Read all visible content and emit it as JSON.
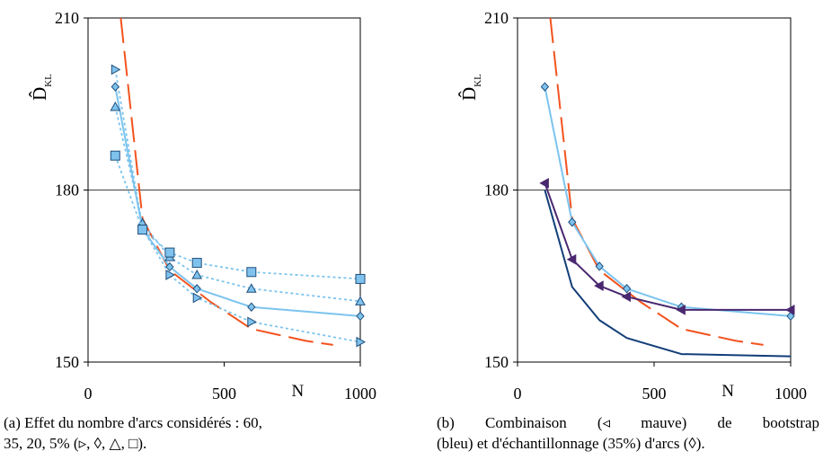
{
  "chart_data": [
    {
      "panel": "a",
      "type": "line",
      "ylabel": "D̂",
      "ylabel_sub": "KL",
      "xlabel": "N",
      "xlim": [
        0,
        1000
      ],
      "ylim": [
        150,
        210
      ],
      "xticks": [
        "0",
        "500",
        "1000"
      ],
      "yticks": [
        "150",
        "180",
        "210"
      ],
      "reference_line": 180,
      "caption": "(a) Effet du nombre d'arcs considérés : 60, 35, 20, 5% (▹, ◊, △, □).",
      "series": [
        {
          "marker": "none",
          "style": "dashed",
          "color": "#F2531F",
          "x": [
            120,
            200,
            300,
            450,
            600,
            800,
            900
          ],
          "y": [
            210,
            175,
            166,
            160.5,
            155.8,
            153.7,
            153
          ]
        },
        {
          "marker": "triangle-right",
          "style": "dotted",
          "color": "#7CC4EE",
          "x": [
            100,
            200,
            300,
            400,
            600,
            1000
          ],
          "y": [
            201,
            173.3,
            165.2,
            161.2,
            157,
            153.5
          ]
        },
        {
          "marker": "diamond",
          "style": "solid",
          "color": "#7CC4EE",
          "x": [
            100,
            200,
            300,
            400,
            600,
            1000
          ],
          "y": [
            198,
            173.2,
            166.6,
            162.8,
            159.6,
            158
          ]
        },
        {
          "marker": "triangle-up",
          "style": "dotted",
          "color": "#7CC4EE",
          "x": [
            100,
            200,
            300,
            400,
            600,
            1000
          ],
          "y": [
            194.5,
            174.2,
            168.3,
            165.2,
            162.8,
            160.6
          ]
        },
        {
          "marker": "square",
          "style": "dotted",
          "color": "#7CC4EE",
          "x": [
            100,
            200,
            300,
            400,
            600,
            1000
          ],
          "y": [
            186,
            173.1,
            169.1,
            167.3,
            165.7,
            164.5
          ]
        }
      ]
    },
    {
      "panel": "b",
      "type": "line",
      "ylabel": "D̂",
      "ylabel_sub": "KL",
      "xlabel": "N",
      "xlim": [
        0,
        1000
      ],
      "ylim": [
        150,
        210
      ],
      "xticks": [
        "0",
        "500",
        "1000"
      ],
      "yticks": [
        "150",
        "180",
        "210"
      ],
      "reference_line": 180,
      "caption": "(b) Combinaison (◃ mauve) de bootstrap (bleu) et d'échantillonnage (35%) d'arcs (◊).",
      "series": [
        {
          "marker": "none",
          "style": "dashed",
          "color": "#F2531F",
          "x": [
            120,
            200,
            300,
            450,
            600,
            800,
            900
          ],
          "y": [
            210,
            175,
            166,
            160.5,
            155.8,
            153.7,
            153
          ]
        },
        {
          "marker": "diamond",
          "style": "solid",
          "color": "#7CC4EE",
          "x": [
            100,
            200,
            300,
            400,
            600,
            1000
          ],
          "y": [
            198,
            174.4,
            166.7,
            162.8,
            159.6,
            158
          ]
        },
        {
          "marker": "triangle-left",
          "style": "solid",
          "color": "#4A2870",
          "x": [
            100,
            200,
            300,
            400,
            600,
            1000
          ],
          "y": [
            181.2,
            167.9,
            163.3,
            161.4,
            159.1,
            159.1
          ]
        },
        {
          "marker": "none",
          "style": "solid",
          "color": "#123E78",
          "x": [
            100,
            200,
            300,
            400,
            600,
            1000
          ],
          "y": [
            180,
            163.1,
            157.3,
            154.2,
            151.4,
            151
          ]
        }
      ]
    }
  ],
  "captions": {
    "a_line1": "(a) Effet du nombre d'arcs considérés : 60,",
    "a_line2": "35, 20, 5% (▹, ◊, △, □).",
    "b_line1": "(b) Combinaison (◃ mauve) de bootstrap",
    "b_line2": "(bleu) et d'échantillonnage (35%) d'arcs (◊)."
  },
  "colors": {
    "marker_fill": "#7FC2EE",
    "marker_stroke": "#1F4E7A",
    "purple": "#4A2870",
    "orange": "#F2531F"
  }
}
